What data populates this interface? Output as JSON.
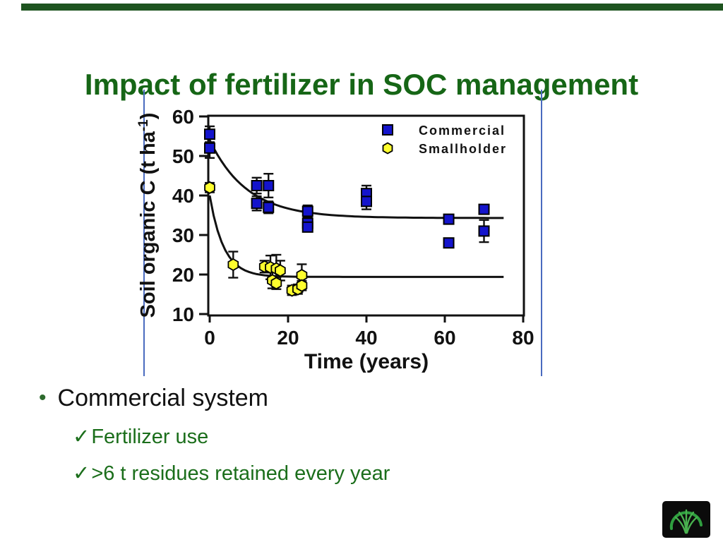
{
  "slide": {
    "title": "Impact of fertilizer in SOC management",
    "bullet": {
      "glyph": "•",
      "text": "Commercial system"
    },
    "checks": [
      {
        "glyph": "✓",
        "text": "Fertilizer use"
      },
      {
        "glyph": "✓",
        "text": ">6 t residues retained every year"
      }
    ]
  },
  "colors": {
    "top_bar_green": "#1e5420",
    "title_green": "#166616",
    "bullet_text_black": "#111111",
    "check_text_green": "#1b6e1b",
    "bullet_dot_green": "#2d6a2d",
    "accent_blue_line": "#4a6bbf",
    "axis_black": "#111111",
    "logo_bg": "#0b0b0b",
    "logo_green": "#2f9e3f"
  },
  "chart_data": {
    "type": "scatter",
    "title": "",
    "xlabel": "Time (years)",
    "ylabel_parts": {
      "prefix": "Soil organic C (t ha",
      "superscript": "-1",
      "suffix": ")"
    },
    "xlim": [
      0,
      80
    ],
    "ylim": [
      10,
      60
    ],
    "xticks": [
      0,
      20,
      40,
      60,
      80
    ],
    "yticks": [
      10,
      20,
      30,
      40,
      50,
      60
    ],
    "grid": false,
    "legend_position": "top-right",
    "series": [
      {
        "name": "Commercial",
        "marker": "square",
        "color": "#1414cc",
        "points": [
          {
            "x": 0,
            "y": 55.5,
            "err": 2.0
          },
          {
            "x": 0,
            "y": 52.0,
            "err": 2.5
          },
          {
            "x": 12,
            "y": 42.5,
            "err": 2.0
          },
          {
            "x": 12,
            "y": 38.0,
            "err": 1.8
          },
          {
            "x": 15,
            "y": 42.5,
            "err": 3.0
          },
          {
            "x": 15,
            "y": 37.0,
            "err": 1.5
          },
          {
            "x": 25,
            "y": 36.0,
            "err": 1.5
          },
          {
            "x": 25,
            "y": 33.0,
            "err": 1.2
          },
          {
            "x": 25,
            "y": 32.0,
            "err": 1.0
          },
          {
            "x": 40,
            "y": 40.5,
            "err": 2.0
          },
          {
            "x": 40,
            "y": 38.5,
            "err": 2.0
          },
          {
            "x": 61,
            "y": 34.0,
            "err": 0.8
          },
          {
            "x": 61,
            "y": 28.0,
            "err": 0.8
          },
          {
            "x": 70,
            "y": 36.5,
            "err": 1.0
          },
          {
            "x": 70,
            "y": 31.0,
            "err": 2.8
          }
        ]
      },
      {
        "name": "Smallholder",
        "marker": "hexagon",
        "color": "#ffff2e",
        "points": [
          {
            "x": 0,
            "y": 42.0,
            "err": 1.2
          },
          {
            "x": 6,
            "y": 22.5,
            "err": 3.3
          },
          {
            "x": 14,
            "y": 22.0,
            "err": 1.5
          },
          {
            "x": 15.5,
            "y": 21.8,
            "err": 3.0
          },
          {
            "x": 17,
            "y": 21.5,
            "err": 3.5
          },
          {
            "x": 18,
            "y": 21.0,
            "err": 2.5
          },
          {
            "x": 16,
            "y": 18.5,
            "err": 2.0
          },
          {
            "x": 17,
            "y": 17.8,
            "err": 1.5
          },
          {
            "x": 21,
            "y": 16.0,
            "err": 1.2
          },
          {
            "x": 22.5,
            "y": 16.3,
            "err": 1.2
          },
          {
            "x": 23.5,
            "y": 19.8,
            "err": 2.8
          },
          {
            "x": 23.5,
            "y": 17.2,
            "err": 1.2
          }
        ]
      }
    ],
    "fit_curves": [
      {
        "series": "Commercial",
        "start_y": 54.0,
        "asymptote": 34.3,
        "decay_rate": 0.105,
        "x_start": 0,
        "x_end": 75
      },
      {
        "series": "Smallholder",
        "start_y": 40.0,
        "asymptote": 19.4,
        "decay_rate": 0.28,
        "x_start": 0,
        "x_end": 75
      }
    ],
    "legend": [
      {
        "label": "Commercial",
        "marker": "square",
        "color": "#1414cc"
      },
      {
        "label": "Smallholder",
        "marker": "hexagon",
        "color": "#ffff2e"
      }
    ]
  }
}
